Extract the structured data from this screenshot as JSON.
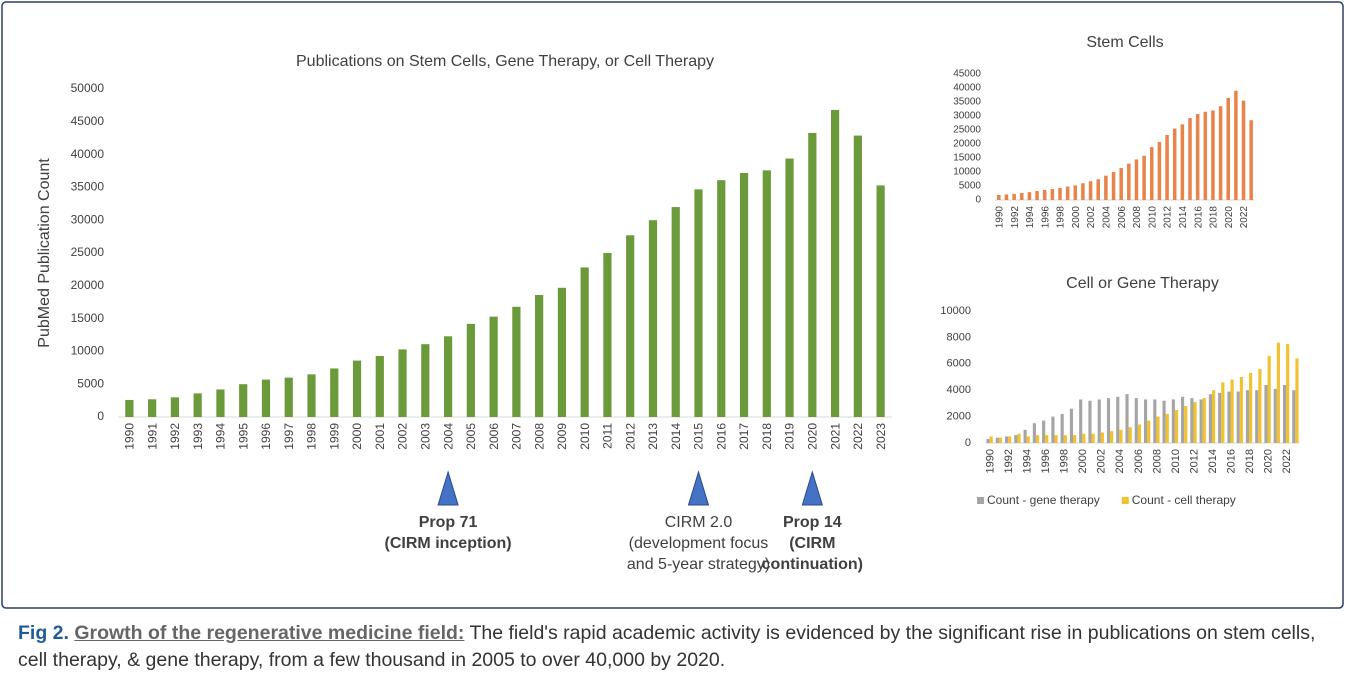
{
  "chart_data": [
    {
      "type": "bar",
      "title": "Publications on Stem Cells, Gene Therapy, or Cell Therapy",
      "ylabel": "PubMed Publication Count",
      "categories": [
        "1990",
        "1991",
        "1992",
        "1993",
        "1994",
        "1995",
        "1996",
        "1997",
        "1998",
        "1999",
        "2000",
        "2001",
        "2002",
        "2003",
        "2004",
        "2005",
        "2006",
        "2007",
        "2008",
        "2009",
        "2010",
        "2011",
        "2012",
        "2013",
        "2014",
        "2015",
        "2016",
        "2017",
        "2018",
        "2019",
        "2020",
        "2021",
        "2022",
        "2023"
      ],
      "values": [
        2600,
        2700,
        3000,
        3600,
        4200,
        5000,
        5700,
        6000,
        6500,
        7400,
        8600,
        9300,
        10300,
        11100,
        12300,
        14200,
        15300,
        16800,
        18600,
        19700,
        22800,
        25000,
        27700,
        30000,
        32000,
        34700,
        36100,
        37200,
        37600,
        39400,
        43300,
        46800,
        42900,
        35300
      ],
      "color": "#6a9a3a",
      "ylim": [
        0,
        50000
      ],
      "yticks": [
        0,
        5000,
        10000,
        15000,
        20000,
        25000,
        30000,
        35000,
        40000,
        45000,
        50000
      ],
      "grid": false,
      "annotations": [
        {
          "at": "2004",
          "bold": true,
          "lines": [
            "Prop 71",
            "(CIRM inception)"
          ]
        },
        {
          "at": "2015",
          "bold": false,
          "lines": [
            "CIRM 2.0",
            "(development focus",
            "and 5-year strategy)"
          ]
        },
        {
          "at": "2020",
          "bold": true,
          "lines": [
            "Prop 14",
            "(CIRM",
            "continuation)"
          ]
        }
      ]
    },
    {
      "type": "bar",
      "title": "Stem Cells",
      "categories": [
        "1990",
        null,
        "1992",
        null,
        "1994",
        null,
        "1996",
        null,
        "1998",
        null,
        "2000",
        null,
        "2002",
        null,
        "2004",
        null,
        "2006",
        null,
        "2008",
        null,
        "2010",
        null,
        "2012",
        null,
        "2014",
        null,
        "2016",
        null,
        "2018",
        null,
        "2020",
        null,
        "2022",
        null
      ],
      "values": [
        1800,
        2000,
        2200,
        2500,
        2800,
        3200,
        3600,
        3900,
        4300,
        4800,
        5200,
        6000,
        6700,
        7400,
        8700,
        10000,
        11400,
        13000,
        14500,
        15800,
        18900,
        20700,
        23200,
        25500,
        27000,
        29300,
        30700,
        31500,
        32000,
        33500,
        36500,
        39000,
        35500,
        28500
      ],
      "color": "#e8834a",
      "ylim": [
        0,
        45000
      ],
      "yticks": [
        0,
        5000,
        10000,
        15000,
        20000,
        25000,
        30000,
        35000,
        40000,
        45000
      ],
      "grid": false
    },
    {
      "type": "bar",
      "title": "Cell or Gene Therapy",
      "categories": [
        "1990",
        null,
        "1992",
        null,
        "1994",
        null,
        "1996",
        null,
        "1998",
        null,
        "2000",
        null,
        "2002",
        null,
        "2004",
        null,
        "2006",
        null,
        "2008",
        null,
        "2010",
        null,
        "2012",
        null,
        "2014",
        null,
        "2016",
        null,
        "2018",
        null,
        "2020",
        null,
        "2022",
        null
      ],
      "series": [
        {
          "name": "Count - gene therapy",
          "color": "#a5a5a5",
          "values": [
            300,
            400,
            500,
            600,
            1000,
            1500,
            1700,
            2000,
            2200,
            2600,
            3300,
            3200,
            3300,
            3400,
            3500,
            3700,
            3400,
            3300,
            3300,
            3200,
            3300,
            3500,
            3400,
            3300,
            3700,
            3800,
            3900,
            3900,
            4000,
            4000,
            4400,
            4100,
            4400,
            4000
          ]
        },
        {
          "name": "Count - cell therapy",
          "color": "#f2c12e",
          "values": [
            500,
            400,
            500,
            700,
            500,
            600,
            600,
            600,
            600,
            600,
            700,
            700,
            800,
            900,
            1000,
            1200,
            1400,
            1700,
            2000,
            2200,
            2500,
            2800,
            3100,
            3400,
            4000,
            4600,
            4800,
            5000,
            5300,
            5600,
            6600,
            7600,
            7500,
            6400
          ]
        }
      ],
      "ylim": [
        0,
        10000
      ],
      "yticks": [
        0,
        2000,
        4000,
        6000,
        8000,
        10000
      ],
      "grid": false,
      "legend": "bottom"
    }
  ],
  "caption": {
    "label": "Fig 2.",
    "heading": "Growth of the regenerative medicine field:",
    "text": "The field's rapid academic activity is evidenced by the significant rise in publications on stem cells, cell therapy, & gene therapy, from a few thousand in 2005 to over 40,000 by 2020."
  }
}
